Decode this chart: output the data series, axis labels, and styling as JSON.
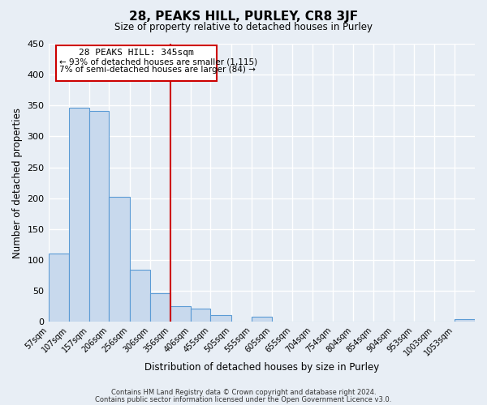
{
  "title": "28, PEAKS HILL, PURLEY, CR8 3JF",
  "subtitle": "Size of property relative to detached houses in Purley",
  "xlabel": "Distribution of detached houses by size in Purley",
  "ylabel": "Number of detached properties",
  "footer_line1": "Contains HM Land Registry data © Crown copyright and database right 2024.",
  "footer_line2": "Contains public sector information licensed under the Open Government Licence v3.0.",
  "categories": [
    "57sqm",
    "107sqm",
    "157sqm",
    "206sqm",
    "256sqm",
    "306sqm",
    "356sqm",
    "406sqm",
    "455sqm",
    "505sqm",
    "555sqm",
    "605sqm",
    "655sqm",
    "704sqm",
    "754sqm",
    "804sqm",
    "854sqm",
    "904sqm",
    "953sqm",
    "1003sqm",
    "1053sqm"
  ],
  "bar_values": [
    110,
    347,
    341,
    203,
    84,
    47,
    25,
    22,
    11,
    0,
    8,
    0,
    0,
    0,
    0,
    0,
    0,
    0,
    0,
    0,
    4
  ],
  "bar_color": "#c8d9ed",
  "bar_edge_color": "#5b9bd5",
  "annotation_label": "28 PEAKS HILL: 345sqm",
  "annotation_text1": "← 93% of detached houses are smaller (1,115)",
  "annotation_text2": "7% of semi-detached houses are larger (84) →",
  "annotation_box_color": "#ffffff",
  "annotation_box_edge": "#cc0000",
  "vline_color": "#cc0000",
  "vline_x": 356,
  "ylim": [
    0,
    450
  ],
  "yticks": [
    0,
    50,
    100,
    150,
    200,
    250,
    300,
    350,
    400,
    450
  ],
  "xlim_left": 57,
  "xlim_right": 1103,
  "label_vals": [
    57,
    107,
    157,
    206,
    256,
    306,
    356,
    406,
    455,
    505,
    555,
    605,
    655,
    704,
    754,
    804,
    854,
    904,
    953,
    1003,
    1053
  ],
  "bin_edges": [
    57,
    107,
    157,
    206,
    256,
    306,
    356,
    406,
    455,
    505,
    555,
    605,
    655,
    704,
    754,
    804,
    854,
    904,
    953,
    1003,
    1053,
    1103
  ],
  "bg_color": "#e8eef5",
  "grid_color": "#ffffff"
}
